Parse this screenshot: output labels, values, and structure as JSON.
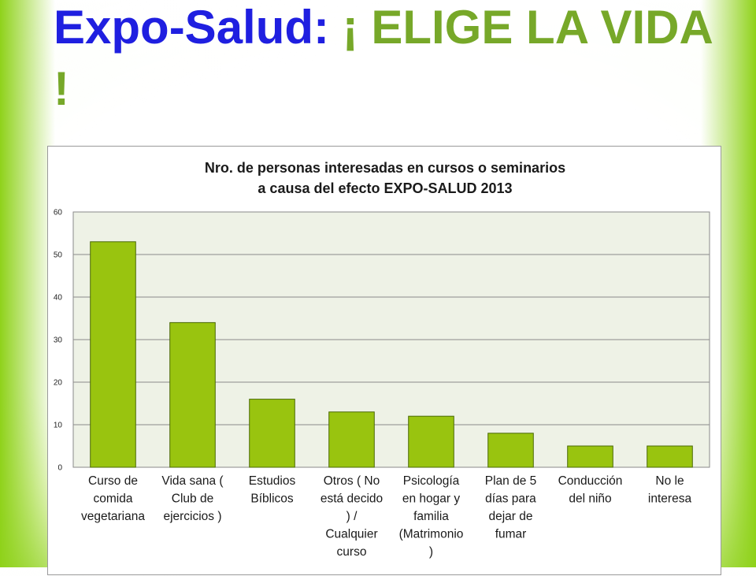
{
  "slide": {
    "title_part1": "Expo-Salud: ",
    "title_part2": "¡ ELIGE LA VIDA !"
  },
  "colors": {
    "bar": "#99c40f",
    "bar_stroke": "#4a6a05",
    "plot_bg": "#eef2e6",
    "grid": "#8a8a8a",
    "title_blue": "#1f1fe0",
    "title_green": "#77a829"
  },
  "chart_data": {
    "type": "bar",
    "title_line1": "Nro. de personas interesadas en cursos o seminarios",
    "title_line2": "a causa del efecto EXPO-SALUD 2013",
    "xlabel": "",
    "ylabel": "",
    "ylim": [
      0,
      60
    ],
    "yticks": [
      "0",
      "10",
      "20",
      "30",
      "40",
      "50",
      "60"
    ],
    "grid": true,
    "legend": "none",
    "categories": [
      [
        "Curso de",
        "comida",
        "vegetariana"
      ],
      [
        "Vida sana (",
        "Club de",
        "ejercicios )"
      ],
      [
        "Estudios",
        "Bíblicos"
      ],
      [
        "Otros ( No",
        "está decido",
        ") /",
        "Cualquier",
        "curso"
      ],
      [
        "Psicología",
        "en hogar y",
        "familia",
        "(Matrimonio",
        ")"
      ],
      [
        "Plan de 5",
        "días para",
        "dejar de",
        "fumar"
      ],
      [
        "Conducción",
        "del niño"
      ],
      [
        "No le",
        "interesa"
      ]
    ],
    "values": [
      53,
      34,
      16,
      13,
      12,
      8,
      5,
      5
    ]
  }
}
